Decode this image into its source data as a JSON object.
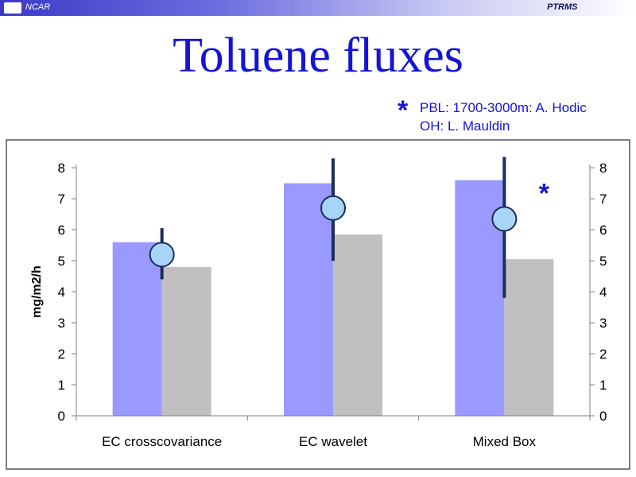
{
  "header": {
    "brand": "NCAR",
    "product": "PTRMS",
    "logo_icon": "ncar-logo-icon"
  },
  "slide": {
    "title": "Toluene fluxes",
    "note_marker": "*",
    "notes": [
      "PBL: 1700-3000m: A. Hodic",
      "OH: L. Mauldin"
    ]
  },
  "chart_data": {
    "type": "bar",
    "categories": [
      "EC crosscovariance",
      "EC wavelet",
      "Mixed Box"
    ],
    "series": [
      {
        "values": [
          5.6,
          7.5,
          7.6
        ],
        "color": "#9999ff"
      },
      {
        "values": [
          4.8,
          5.85,
          5.05
        ],
        "color": "#c0c0c0"
      }
    ],
    "points": {
      "values": [
        5.2,
        6.7,
        6.35
      ],
      "error_low": [
        4.4,
        5.0,
        3.8
      ],
      "error_high": [
        6.05,
        8.3,
        8.35
      ],
      "fill": "#a8d4f8",
      "line_color": "#1a2e5a"
    },
    "annotation": {
      "text": "*",
      "category": "Mixed Box",
      "y": 7.6
    },
    "ylabel": "mg/m2/h",
    "ylim": [
      0,
      8
    ],
    "yticks": [
      0,
      1,
      2,
      3,
      4,
      5,
      6,
      7,
      8
    ],
    "secondary_axis": true,
    "grid": false,
    "legend": "none"
  }
}
